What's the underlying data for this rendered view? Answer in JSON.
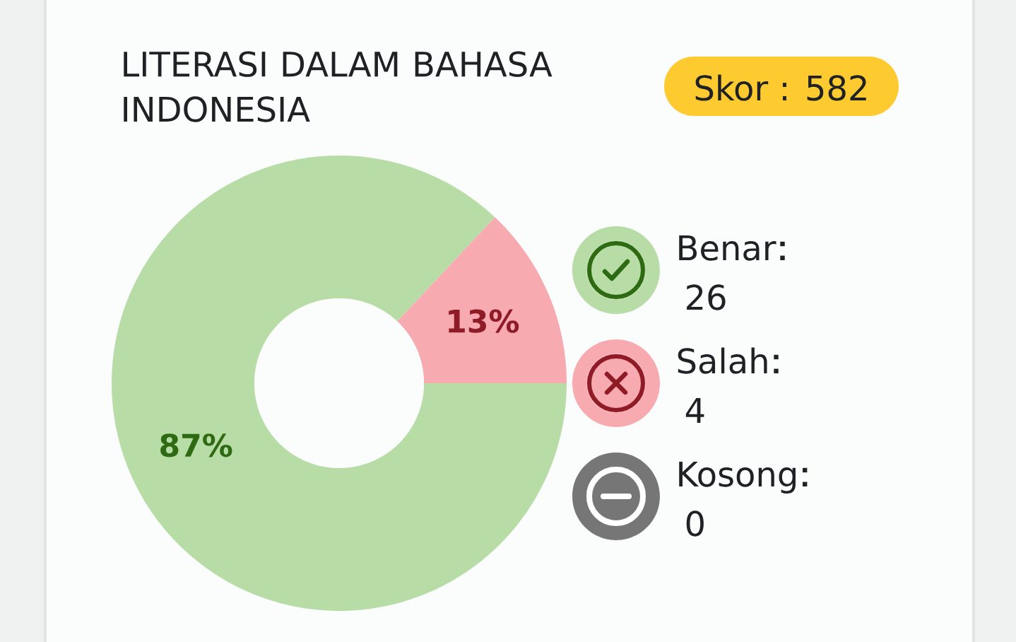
{
  "chart_data": {
    "type": "donut",
    "title": "LITERASI DALAM BAHASA INDONESIA",
    "annotations": [
      "Skor : 582",
      {
        "text": "26",
        "x": "Benar"
      },
      {
        "text": "4",
        "x": "Salah"
      },
      {
        "text": "0",
        "x": "Kosong"
      }
    ],
    "categories": [
      "Benar",
      "Salah",
      "Kosong"
    ],
    "values": [
      87,
      13,
      0
    ],
    "value_labels": [
      "87%",
      "13%",
      null
    ],
    "colors": [
      "#b8dca6",
      "#f7abb1",
      "#767676"
    ],
    "legend": "right"
  }
}
